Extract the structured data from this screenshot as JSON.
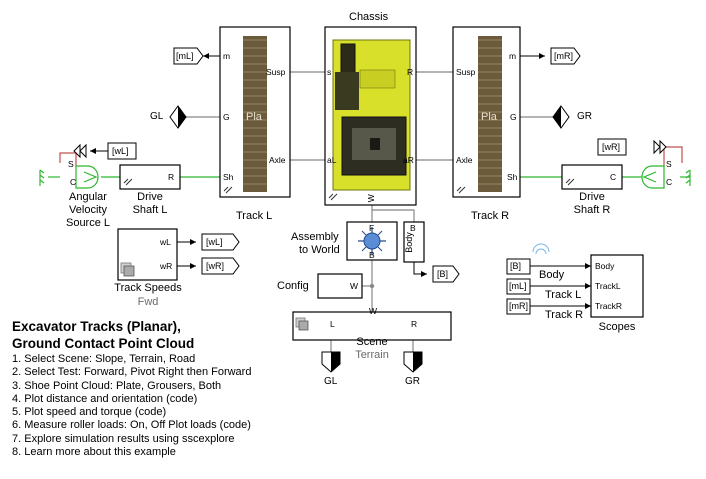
{
  "blocks": {
    "chassis": {
      "title": "Chassis",
      "ports": {
        "left": "s",
        "right": "R",
        "left2": "aL",
        "right2": "aR",
        "bottom": "W"
      }
    },
    "track_l": {
      "title": "Track L",
      "ports": {
        "m": "m",
        "susp": "Susp",
        "g": "G",
        "axle": "Axle",
        "sh": "Sh"
      },
      "mark": "Pla"
    },
    "track_r": {
      "title": "Track R",
      "ports": {
        "susp": "Susp",
        "m": "m",
        "g": "G",
        "axle": "Axle",
        "sh": "Sh"
      },
      "mark": "Pla"
    },
    "drive_l": {
      "title_l1": "Drive",
      "title_l2": "Shaft L",
      "port": "R"
    },
    "drive_r": {
      "title_l1": "Drive",
      "title_l2": "Shaft R",
      "port": "C"
    },
    "angvel": {
      "l1": "Angular",
      "l2": "Velocity",
      "l3": "Source L",
      "s": "S",
      "c": "C"
    },
    "angvel_r": {
      "s": "S",
      "c": "C"
    },
    "track_speeds": {
      "title": "Track Speeds",
      "sub": "Fwd",
      "p1": "wL",
      "p2": "wR"
    },
    "assembly": {
      "l1": "Assembly",
      "l2": "to World",
      "f": "F",
      "b": "B"
    },
    "body_b": {
      "text": "Body",
      "b": "B"
    },
    "config": {
      "title": "Config",
      "port": "W"
    },
    "scene": {
      "title": "Scene",
      "sub": "Terrain",
      "l": "L",
      "r": "R",
      "w": "W"
    },
    "scopes": {
      "title": "Scopes",
      "p1": "Body",
      "p2": "TrackL",
      "p3": "TrackR"
    }
  },
  "tags": {
    "mL": "[mL]",
    "mR": "[mR]",
    "wL": "[wL]",
    "wR": "[wR]",
    "B": "[B]",
    "wL_out": "[wL]",
    "wR_out": "[wR]",
    "scope_b": "[B]",
    "scope_ml": "[mL]",
    "scope_mr": "[mR]"
  },
  "goto": {
    "GL": "GL",
    "GR": "GR",
    "GL_bottom": "GL",
    "GR_bottom": "GR"
  },
  "signals": {
    "body": "Body",
    "track_l": "Track L",
    "track_r": "Track R"
  },
  "colors": {
    "chassis": "#d9e02a",
    "track": "#6b5a3c",
    "mech": "#7f7f7f",
    "rot": "#2db82d",
    "spring": "#c0504d"
  },
  "title_line1": "Excavator Tracks (Planar),",
  "title_line2": "Ground Contact Point Cloud",
  "steps": [
    "1. Select Scene: Slope, Terrain, Road",
    "2. Select Test: Forward, Pivot Right then Forward",
    "3. Shoe Point Cloud: Plate, Grousers, Both",
    "4. Plot distance and orientation (code)",
    "5. Plot speed and torque (code)",
    "6. Measure roller loads: On, Off  Plot loads (code)",
    "7. Explore simulation results using sscexplore",
    "8. Learn more about this example"
  ]
}
